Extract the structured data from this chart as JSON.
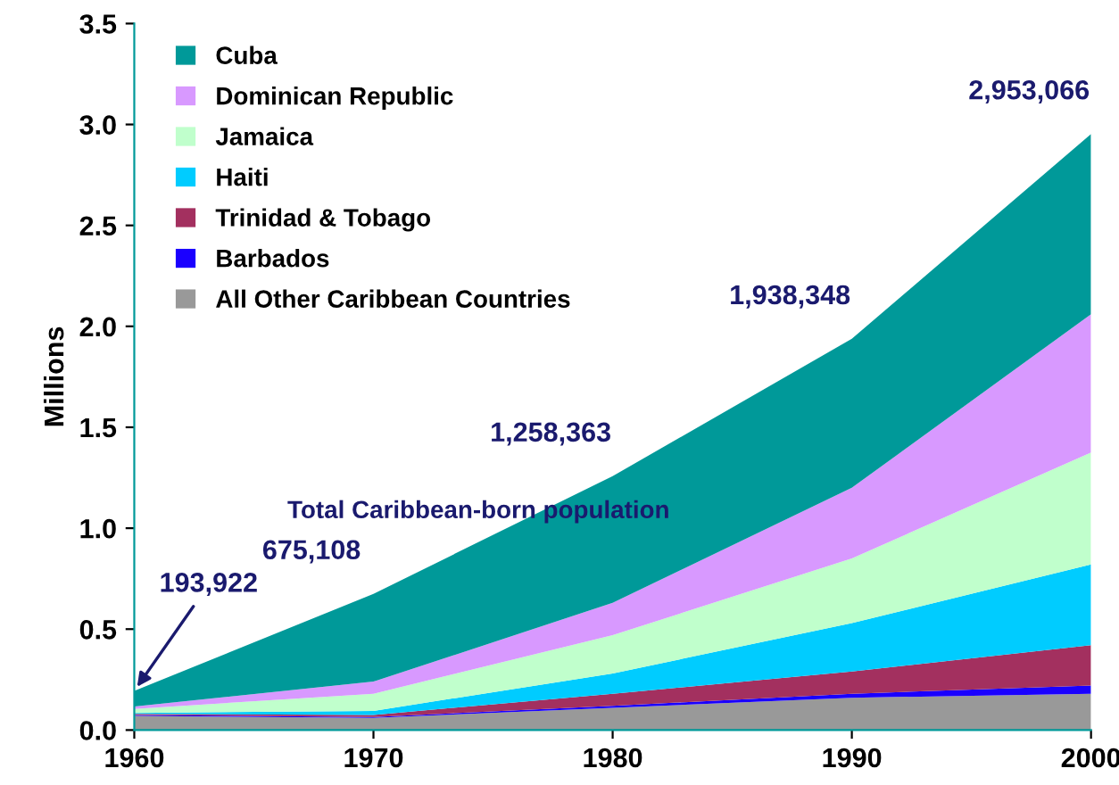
{
  "chart_data": {
    "type": "area",
    "stacked": true,
    "ylabel": "Millions",
    "x": [
      1960,
      1970,
      1980,
      1990,
      2000
    ],
    "xlim": [
      1960,
      2000
    ],
    "xticks": [
      1960,
      1970,
      1980,
      1990,
      2000
    ],
    "ylim": [
      0,
      3.5
    ],
    "yticks": [
      {
        "value": 0,
        "label": "0.0"
      },
      {
        "value": 0.5,
        "label": "0.5"
      },
      {
        "value": 1,
        "label": "1.0"
      },
      {
        "value": 1.5,
        "label": "1.5"
      },
      {
        "value": 2,
        "label": "2.0"
      },
      {
        "value": 2.5,
        "label": "2.5"
      },
      {
        "value": 3,
        "label": "3.0"
      },
      {
        "value": 3.5,
        "label": "3.5"
      }
    ],
    "grid": false,
    "legend": "top left",
    "series": [
      {
        "name": "All Other Caribbean Countries",
        "color": "#999999",
        "values": [
          0.07,
          0.06,
          0.11,
          0.16,
          0.18
        ]
      },
      {
        "name": "Barbados",
        "color": "#1a00ff",
        "values": [
          0.005,
          0.005,
          0.01,
          0.02,
          0.04
        ]
      },
      {
        "name": "Trinidad & Tobago",
        "color": "#a3305f",
        "values": [
          0.005,
          0.01,
          0.06,
          0.11,
          0.2
        ]
      },
      {
        "name": "Haiti",
        "color": "#00ccff",
        "values": [
          0.005,
          0.02,
          0.1,
          0.24,
          0.4
        ]
      },
      {
        "name": "Jamaica",
        "color": "#c0ffcc",
        "values": [
          0.02,
          0.085,
          0.19,
          0.32,
          0.555
        ]
      },
      {
        "name": "Dominican Republic",
        "color": "#d899ff",
        "values": [
          0.012,
          0.06,
          0.16,
          0.35,
          0.685
        ]
      },
      {
        "name": "Cuba",
        "color": "#009999",
        "values": [
          0.077,
          0.435,
          0.628,
          0.738,
          0.893
        ]
      }
    ],
    "annotations": [
      {
        "text": "193,922",
        "x": 1960,
        "y": 0.194
      },
      {
        "text": "675,108",
        "x": 1970,
        "y": 0.675
      },
      {
        "text": "1,258,363",
        "x": 1980,
        "y": 1.258
      },
      {
        "text": "1,938,348",
        "x": 1990,
        "y": 1.938
      },
      {
        "text": "2,953,066",
        "x": 2000,
        "y": 2.953
      },
      "Total Caribbean-born population"
    ]
  }
}
